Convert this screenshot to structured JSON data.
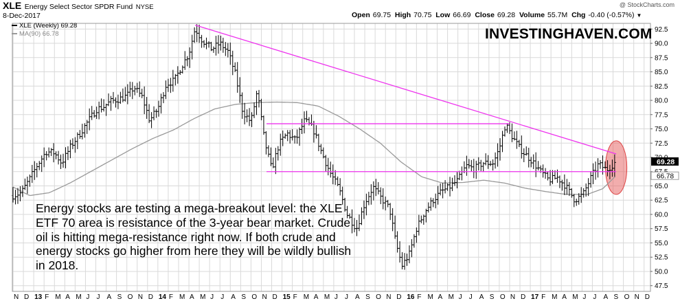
{
  "header": {
    "symbol": "XLE",
    "fund_name": "Energy Select Sector SPDR Fund",
    "exchange": "NYSE",
    "date": "8-Dec-2017",
    "credit": "@ StockCharts.com",
    "ohlc": {
      "open_label": "Open",
      "open": "69.75",
      "high_label": "High",
      "high": "70.75",
      "low_label": "Low",
      "low": "66.69",
      "close_label": "Close",
      "close": "69.28",
      "volume_label": "Volume",
      "volume": "55.7M",
      "chg_label": "Chg",
      "chg": "-0.40 (-0.57%)"
    }
  },
  "legend": {
    "series1": "XLE (Weekly) 69.28",
    "series2": "MA(90) 66.78"
  },
  "brand": "INVESTINGHAVEN.COM",
  "annotation": "Energy stocks are testing a mega-breakout level: the XLE ETF 70 area is resistance of the 3-year bear market. Crude oil is hitting mega-resistance right now. If both crude and energy stocks go higher from here they will be wildly bullish in 2018.",
  "colors": {
    "price": "#000000",
    "ma": "#999999",
    "trendline": "#ee33ee",
    "highlight": "#e86a6a",
    "grid": "#d9d9d9"
  },
  "chart_data": {
    "type": "ohlc",
    "title": "XLE Energy Select Sector SPDR Fund (Weekly)",
    "ylim": [
      46.5,
      93.5
    ],
    "y_ticks": [
      47.5,
      50.0,
      52.5,
      55.0,
      57.5,
      60.0,
      62.5,
      65.0,
      67.5,
      70.0,
      72.5,
      75.0,
      77.5,
      80.0,
      82.5,
      85.0,
      87.5,
      90.0,
      92.5
    ],
    "y_tick_labels": [
      "47.5",
      "50.0",
      "52.5",
      "55.0",
      "57.5",
      "60.0",
      "62.5",
      "65.0",
      "67.5",
      "70.0",
      "72.5",
      "75.0",
      "77.5",
      "80.0",
      "82.5",
      "85.0",
      "87.5",
      "90.0",
      "92.5"
    ],
    "x_range": [
      0,
      73
    ],
    "x_labels": [
      "N",
      "D",
      "13",
      "F",
      "M",
      "A",
      "M",
      "J",
      "J",
      "A",
      "S",
      "O",
      "N",
      "D",
      "14",
      "F",
      "M",
      "A",
      "M",
      "J",
      "J",
      "A",
      "S",
      "O",
      "N",
      "D",
      "15",
      "F",
      "M",
      "A",
      "M",
      "J",
      "J",
      "A",
      "S",
      "O",
      "N",
      "D",
      "16",
      "F",
      "M",
      "A",
      "M",
      "J",
      "J",
      "A",
      "S",
      "O",
      "N",
      "D",
      "17",
      "F",
      "M",
      "A",
      "M",
      "J",
      "J",
      "A",
      "S",
      "O",
      "N",
      "D"
    ],
    "x_label_months": [
      0,
      1,
      2,
      3,
      4,
      5,
      6,
      7,
      8,
      9,
      10,
      11,
      12,
      13,
      14,
      15,
      16,
      17,
      18,
      19,
      20,
      21,
      22,
      23,
      24,
      25,
      26,
      27,
      28,
      29,
      30,
      31,
      32,
      33,
      34,
      35,
      36,
      37,
      38,
      39,
      40,
      41,
      42,
      43,
      44,
      45,
      46,
      47,
      48,
      49,
      50,
      51,
      52,
      53,
      54,
      55,
      56,
      57,
      58,
      59,
      60,
      61
    ],
    "x_bold_labels": [
      "13",
      "14",
      "15",
      "16",
      "17"
    ],
    "price_anchors": [
      [
        0,
        63.3
      ],
      [
        0.8,
        63.8
      ],
      [
        1.6,
        66.2
      ],
      [
        2.3,
        68.5
      ],
      [
        3.2,
        71.0
      ],
      [
        4.0,
        70.8
      ],
      [
        4.7,
        69.0
      ],
      [
        5.6,
        72.0
      ],
      [
        6.4,
        74.0
      ],
      [
        7.2,
        76.2
      ],
      [
        8.1,
        78.5
      ],
      [
        8.7,
        78.8
      ],
      [
        9.4,
        79.8
      ],
      [
        10.2,
        80.2
      ],
      [
        11.0,
        80.8
      ],
      [
        11.7,
        82.3
      ],
      [
        12.5,
        80.5
      ],
      [
        13.2,
        76.5
      ],
      [
        14.0,
        78.5
      ],
      [
        14.8,
        82.8
      ],
      [
        15.6,
        83.5
      ],
      [
        16.3,
        86.0
      ],
      [
        17.0,
        88.2
      ],
      [
        17.6,
        92.6
      ],
      [
        18.3,
        90.5
      ],
      [
        19.2,
        89.0
      ],
      [
        20.0,
        90.0
      ],
      [
        20.8,
        88.5
      ],
      [
        21.5,
        84.5
      ],
      [
        22.2,
        78.0
      ],
      [
        23.0,
        76.2
      ],
      [
        23.6,
        81.6
      ],
      [
        24.3,
        73.0
      ],
      [
        25.0,
        67.8
      ],
      [
        25.7,
        72.3
      ],
      [
        26.5,
        74.2
      ],
      [
        27.3,
        73.0
      ],
      [
        28.2,
        76.5
      ],
      [
        29.0,
        75.0
      ],
      [
        29.8,
        71.0
      ],
      [
        30.6,
        67.5
      ],
      [
        31.5,
        64.5
      ],
      [
        32.3,
        60.0
      ],
      [
        33.2,
        57.5
      ],
      [
        34.0,
        62.0
      ],
      [
        34.8,
        64.8
      ],
      [
        35.6,
        62.8
      ],
      [
        36.4,
        61.0
      ],
      [
        37.0,
        55.0
      ],
      [
        37.6,
        51.0
      ],
      [
        38.3,
        53.0
      ],
      [
        39.0,
        57.5
      ],
      [
        39.8,
        60.5
      ],
      [
        40.6,
        62.5
      ],
      [
        41.4,
        64.0
      ],
      [
        42.2,
        64.8
      ],
      [
        43.0,
        66.0
      ],
      [
        43.8,
        68.5
      ],
      [
        44.6,
        68.0
      ],
      [
        45.4,
        69.0
      ],
      [
        46.4,
        69.0
      ],
      [
        47.0,
        71.5
      ],
      [
        47.6,
        75.8
      ],
      [
        48.3,
        73.5
      ],
      [
        49.0,
        71.5
      ],
      [
        50.2,
        69.3
      ],
      [
        51.0,
        67.5
      ],
      [
        51.8,
        66.0
      ],
      [
        52.6,
        66.5
      ],
      [
        53.4,
        65.0
      ],
      [
        54.3,
        62.5
      ],
      [
        55.1,
        63.5
      ],
      [
        55.9,
        66.6
      ],
      [
        56.6,
        68.8
      ],
      [
        57.4,
        67.8
      ],
      [
        58.3,
        69.3
      ]
    ],
    "ma90_anchors": [
      [
        0,
        64.8
      ],
      [
        1.6,
        63.3
      ],
      [
        3.5,
        63.8
      ],
      [
        5.5,
        65.5
      ],
      [
        7.5,
        67.5
      ],
      [
        9.5,
        69.5
      ],
      [
        11.5,
        71.5
      ],
      [
        13.5,
        73.3
      ],
      [
        15.5,
        74.8
      ],
      [
        17.5,
        76.8
      ],
      [
        19.5,
        78.5
      ],
      [
        21.5,
        79.3
      ],
      [
        23.5,
        79.6
      ],
      [
        25.5,
        79.7
      ],
      [
        27.5,
        79.6
      ],
      [
        29.5,
        79.0
      ],
      [
        31.5,
        77.2
      ],
      [
        33.5,
        75.0
      ],
      [
        35.5,
        72.5
      ],
      [
        37.5,
        69.2
      ],
      [
        39.5,
        66.6
      ],
      [
        41.5,
        65.5
      ],
      [
        43.5,
        65.6
      ],
      [
        45.5,
        66.0
      ],
      [
        47.5,
        65.5
      ],
      [
        49.5,
        64.6
      ],
      [
        51.5,
        64.0
      ],
      [
        53.5,
        63.5
      ],
      [
        55.5,
        63.5
      ],
      [
        57.0,
        64.5
      ],
      [
        58.3,
        66.8
      ]
    ],
    "trendlines": [
      {
        "name": "bear-market-resistance",
        "from": [
          17.6,
          93.2
        ],
        "to": [
          58.3,
          70.6
        ]
      },
      {
        "name": "upper-horizontal",
        "from": [
          24.5,
          75.9
        ],
        "to": [
          48.0,
          75.9
        ]
      },
      {
        "name": "lower-horizontal",
        "from": [
          24.5,
          67.5
        ],
        "to": [
          58.3,
          67.5
        ]
      }
    ],
    "highlight_ellipse": {
      "center": [
        58.3,
        68.2
      ],
      "radius_x": 0.9,
      "radius_y": 4.7
    },
    "last_price_label": "69.28",
    "last_price": 69.28,
    "ma_label": "66.78",
    "ma_last": 66.78
  }
}
